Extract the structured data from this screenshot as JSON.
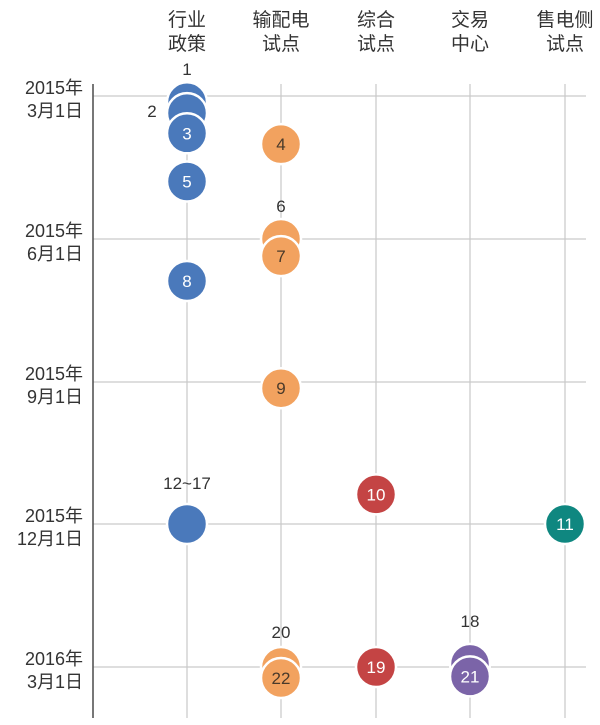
{
  "chart_data": {
    "type": "scatter",
    "columns": [
      {
        "line1": "行业",
        "line2": "政策"
      },
      {
        "line1": "输配电",
        "line2": "试点"
      },
      {
        "line1": "综合",
        "line2": "试点"
      },
      {
        "line1": "交易",
        "line2": "中心"
      },
      {
        "line1": "售电侧",
        "line2": "试点"
      }
    ],
    "rows": [
      {
        "line1": "2015年",
        "line2": "3月1日"
      },
      {
        "line1": "2015年",
        "line2": "6月1日"
      },
      {
        "line1": "2015年",
        "line2": "9月1日"
      },
      {
        "line1": "2015年",
        "line2": "12月1日"
      },
      {
        "line1": "2016年",
        "line2": "3月1日"
      }
    ],
    "colors": {
      "行业政策": "#4a79bb",
      "输配电试点": "#f2a25f",
      "综合试点": "#c44444",
      "交易中心": "#7b64a8",
      "售电侧试点": "#0f8780",
      "grid": "#c9c9c9",
      "axis": "#555555"
    },
    "points": [
      {
        "label": "",
        "column": 0,
        "date": "2015-03-05",
        "outside": "1"
      },
      {
        "label": "",
        "column": 0,
        "date": "2015-03-12",
        "outside": "2"
      },
      {
        "label": "3",
        "column": 0,
        "date": "2015-03-25",
        "outside": ""
      },
      {
        "label": "5",
        "column": 0,
        "date": "2015-04-25",
        "outside": ""
      },
      {
        "label": "8",
        "column": 0,
        "date": "2015-06-28",
        "outside": ""
      },
      {
        "label": "",
        "column": 0,
        "date": "2015-12-01",
        "outside": "12~17"
      },
      {
        "label": "4",
        "column": 1,
        "date": "2015-04-01",
        "outside": ""
      },
      {
        "label": "",
        "column": 1,
        "date": "2015-06-01",
        "outside": "6"
      },
      {
        "label": "7",
        "column": 1,
        "date": "2015-06-12",
        "outside": ""
      },
      {
        "label": "9",
        "column": 1,
        "date": "2015-09-05",
        "outside": ""
      },
      {
        "label": "",
        "column": 1,
        "date": "2016-03-01",
        "outside": "20"
      },
      {
        "label": "22",
        "column": 1,
        "date": "2016-03-08",
        "outside": ""
      },
      {
        "label": "10",
        "column": 2,
        "date": "2015-11-12",
        "outside": ""
      },
      {
        "label": "19",
        "column": 2,
        "date": "2016-03-01",
        "outside": ""
      },
      {
        "label": "",
        "column": 3,
        "date": "2016-02-28",
        "outside": "18"
      },
      {
        "label": "21",
        "column": 3,
        "date": "2016-03-07",
        "outside": ""
      },
      {
        "label": "11",
        "column": 4,
        "date": "2015-12-01",
        "outside": ""
      }
    ]
  }
}
